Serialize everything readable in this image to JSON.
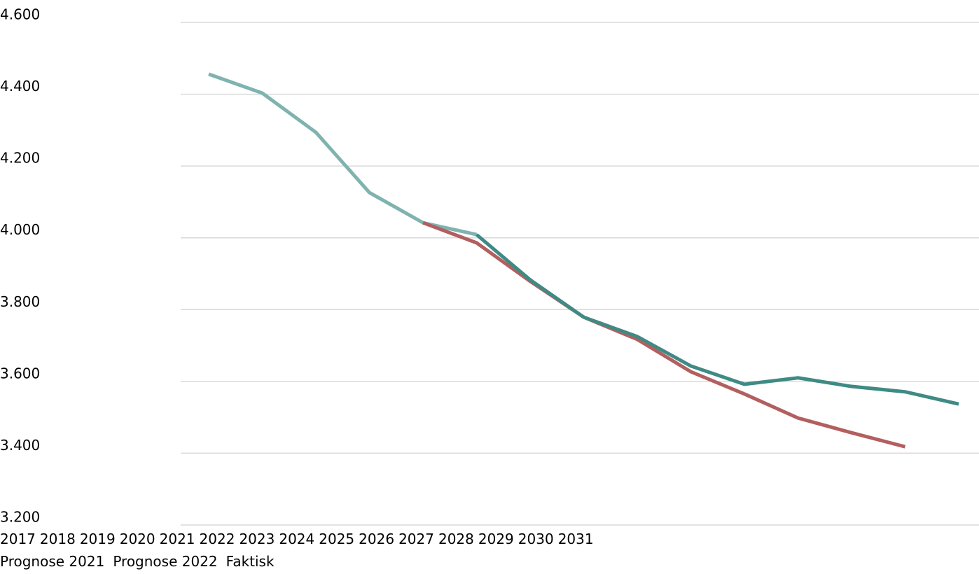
{
  "chart_data": {
    "type": "line",
    "categories": [
      "2017",
      "2018",
      "2019",
      "2020",
      "2021",
      "2022",
      "2023",
      "2024",
      "2025",
      "2026",
      "2027",
      "2028",
      "2029",
      "2030",
      "2031"
    ],
    "series": [
      {
        "name": "Prognose 2021",
        "color": "#b35f5f",
        "values": [
          null,
          null,
          null,
          null,
          4042,
          3986,
          3879,
          3779,
          3717,
          3627,
          3565,
          3498,
          3457,
          3418,
          null
        ]
      },
      {
        "name": "Prognose 2022",
        "color": "#3f8a84",
        "values": [
          null,
          null,
          null,
          null,
          null,
          4009,
          3883,
          3779,
          3725,
          3643,
          3592,
          3610,
          3586,
          3571,
          3537
        ]
      },
      {
        "name": "Faktisk",
        "color": "#7fb3b0",
        "values": [
          4456,
          4403,
          4294,
          4126,
          4042,
          4009,
          null,
          null,
          null,
          null,
          null,
          null,
          null,
          null,
          null
        ]
      }
    ],
    "ylim": [
      3200,
      4600
    ],
    "yticks": [
      {
        "value": 4600,
        "label": "4.600"
      },
      {
        "value": 4400,
        "label": "4.400"
      },
      {
        "value": 4200,
        "label": "4.200"
      },
      {
        "value": 4000,
        "label": "4.000"
      },
      {
        "value": 3800,
        "label": "3.800"
      },
      {
        "value": 3600,
        "label": "3.600"
      },
      {
        "value": 3400,
        "label": "3.400"
      },
      {
        "value": 3200,
        "label": "3.200"
      }
    ],
    "grid": true
  }
}
